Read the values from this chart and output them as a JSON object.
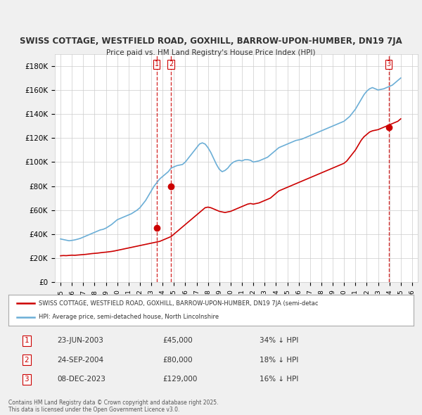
{
  "title_line1": "SWISS COTTAGE, WESTFIELD ROAD, GOXHILL, BARROW-UPON-HUMBER, DN19 7JA",
  "title_line2": "Price paid vs. HM Land Registry's House Price Index (HPI)",
  "background_color": "#f0f0f0",
  "plot_bg_color": "#ffffff",
  "hpi_color": "#6baed6",
  "price_color": "#cc0000",
  "vline_color": "#cc0000",
  "ylim": [
    0,
    190000
  ],
  "yticks": [
    0,
    20000,
    40000,
    60000,
    80000,
    100000,
    120000,
    140000,
    160000,
    180000
  ],
  "ytick_labels": [
    "£0",
    "£20K",
    "£40K",
    "£60K",
    "£80K",
    "£100K",
    "£120K",
    "£140K",
    "£160K",
    "£180K"
  ],
  "year_start": 1995,
  "year_end": 2026,
  "sale1_date": 2003.47,
  "sale1_price": 45000,
  "sale1_label": "1",
  "sale2_date": 2004.73,
  "sale2_price": 80000,
  "sale2_label": "2",
  "sale3_date": 2023.93,
  "sale3_price": 129000,
  "sale3_label": "3",
  "legend_label_red": "SWISS COTTAGE, WESTFIELD ROAD, GOXHILL, BARROW-UPON-HUMBER, DN19 7JA (semi-detac",
  "legend_label_blue": "HPI: Average price, semi-detached house, North Lincolnshire",
  "table_data": [
    [
      "1",
      "23-JUN-2003",
      "£45,000",
      "34% ↓ HPI"
    ],
    [
      "2",
      "24-SEP-2004",
      "£80,000",
      "18% ↓ HPI"
    ],
    [
      "3",
      "08-DEC-2023",
      "£129,000",
      "16% ↓ HPI"
    ]
  ],
  "footer_text": "Contains HM Land Registry data © Crown copyright and database right 2025.\nThis data is licensed under the Open Government Licence v3.0.",
  "hpi_data_years": [
    1995.0,
    1995.25,
    1995.5,
    1995.75,
    1996.0,
    1996.25,
    1996.5,
    1996.75,
    1997.0,
    1997.25,
    1997.5,
    1997.75,
    1998.0,
    1998.25,
    1998.5,
    1998.75,
    1999.0,
    1999.25,
    1999.5,
    1999.75,
    2000.0,
    2000.25,
    2000.5,
    2000.75,
    2001.0,
    2001.25,
    2001.5,
    2001.75,
    2002.0,
    2002.25,
    2002.5,
    2002.75,
    2003.0,
    2003.25,
    2003.5,
    2003.75,
    2004.0,
    2004.25,
    2004.5,
    2004.75,
    2005.0,
    2005.25,
    2005.5,
    2005.75,
    2006.0,
    2006.25,
    2006.5,
    2006.75,
    2007.0,
    2007.25,
    2007.5,
    2007.75,
    2008.0,
    2008.25,
    2008.5,
    2008.75,
    2009.0,
    2009.25,
    2009.5,
    2009.75,
    2010.0,
    2010.25,
    2010.5,
    2010.75,
    2011.0,
    2011.25,
    2011.5,
    2011.75,
    2012.0,
    2012.25,
    2012.5,
    2012.75,
    2013.0,
    2013.25,
    2013.5,
    2013.75,
    2014.0,
    2014.25,
    2014.5,
    2014.75,
    2015.0,
    2015.25,
    2015.5,
    2015.75,
    2016.0,
    2016.25,
    2016.5,
    2016.75,
    2017.0,
    2017.25,
    2017.5,
    2017.75,
    2018.0,
    2018.25,
    2018.5,
    2018.75,
    2019.0,
    2019.25,
    2019.5,
    2019.75,
    2020.0,
    2020.25,
    2020.5,
    2020.75,
    2021.0,
    2021.25,
    2021.5,
    2021.75,
    2022.0,
    2022.25,
    2022.5,
    2022.75,
    2023.0,
    2023.25,
    2023.5,
    2023.75,
    2024.0,
    2024.25,
    2024.5,
    2024.75,
    2025.0
  ],
  "hpi_data_values": [
    36000,
    35500,
    35000,
    34500,
    34800,
    35200,
    35800,
    36500,
    37500,
    38500,
    39500,
    40500,
    41500,
    42500,
    43500,
    44000,
    45000,
    46500,
    48000,
    50000,
    52000,
    53000,
    54000,
    55000,
    56000,
    57000,
    58500,
    60000,
    62000,
    65000,
    68000,
    72000,
    76000,
    80000,
    83000,
    86000,
    88000,
    90000,
    92000,
    95000,
    96000,
    97000,
    97500,
    98000,
    100000,
    103000,
    106000,
    109000,
    112000,
    115000,
    116000,
    115000,
    112000,
    108000,
    103000,
    98000,
    94000,
    92000,
    93000,
    95000,
    98000,
    100000,
    101000,
    101500,
    101000,
    102000,
    102000,
    101500,
    100000,
    100500,
    101000,
    102000,
    103000,
    104000,
    106000,
    108000,
    110000,
    112000,
    113000,
    114000,
    115000,
    116000,
    117000,
    118000,
    118500,
    119000,
    120000,
    121000,
    122000,
    123000,
    124000,
    125000,
    126000,
    127000,
    128000,
    129000,
    130000,
    131000,
    132000,
    133000,
    134000,
    136000,
    138000,
    141000,
    144000,
    148000,
    152000,
    156000,
    159000,
    161000,
    162000,
    161000,
    160000,
    160500,
    161000,
    162000,
    163000,
    164000,
    166000,
    168000,
    170000
  ],
  "price_data_years": [
    1995.0,
    1995.25,
    1995.5,
    1995.75,
    1996.0,
    1996.25,
    1996.5,
    1996.75,
    1997.0,
    1997.25,
    1997.5,
    1997.75,
    1998.0,
    1998.25,
    1998.5,
    1998.75,
    1999.0,
    1999.25,
    1999.5,
    1999.75,
    2000.0,
    2000.25,
    2000.5,
    2000.75,
    2001.0,
    2001.25,
    2001.5,
    2001.75,
    2002.0,
    2002.25,
    2002.5,
    2002.75,
    2003.0,
    2003.25,
    2003.5,
    2003.75,
    2004.0,
    2004.25,
    2004.5,
    2004.75,
    2005.0,
    2005.25,
    2005.5,
    2005.75,
    2006.0,
    2006.25,
    2006.5,
    2006.75,
    2007.0,
    2007.25,
    2007.5,
    2007.75,
    2008.0,
    2008.25,
    2008.5,
    2008.75,
    2009.0,
    2009.25,
    2009.5,
    2009.75,
    2010.0,
    2010.25,
    2010.5,
    2010.75,
    2011.0,
    2011.25,
    2011.5,
    2011.75,
    2012.0,
    2012.25,
    2012.5,
    2012.75,
    2013.0,
    2013.25,
    2013.5,
    2013.75,
    2014.0,
    2014.25,
    2014.5,
    2014.75,
    2015.0,
    2015.25,
    2015.5,
    2015.75,
    2016.0,
    2016.25,
    2016.5,
    2016.75,
    2017.0,
    2017.25,
    2017.5,
    2017.75,
    2018.0,
    2018.25,
    2018.5,
    2018.75,
    2019.0,
    2019.25,
    2019.5,
    2019.75,
    2020.0,
    2020.25,
    2020.5,
    2020.75,
    2021.0,
    2021.25,
    2021.5,
    2021.75,
    2022.0,
    2022.25,
    2022.5,
    2022.75,
    2023.0,
    2023.25,
    2023.5,
    2023.75,
    2024.0,
    2024.25,
    2024.5,
    2024.75,
    2025.0
  ],
  "price_data_values": [
    22000,
    22200,
    22100,
    22300,
    22500,
    22400,
    22600,
    22800,
    23000,
    23200,
    23500,
    23800,
    24000,
    24200,
    24500,
    24800,
    25000,
    25300,
    25600,
    26000,
    26500,
    27000,
    27500,
    28000,
    28500,
    29000,
    29500,
    30000,
    30500,
    31000,
    31500,
    32000,
    32500,
    33000,
    33500,
    34000,
    35000,
    36000,
    37000,
    38000,
    40000,
    42000,
    44000,
    46000,
    48000,
    50000,
    52000,
    54000,
    56000,
    58000,
    60000,
    62000,
    62500,
    62000,
    61000,
    60000,
    59000,
    58500,
    58000,
    58500,
    59000,
    60000,
    61000,
    62000,
    63000,
    64000,
    65000,
    65500,
    65000,
    65500,
    66000,
    67000,
    68000,
    69000,
    70000,
    72000,
    74000,
    76000,
    77000,
    78000,
    79000,
    80000,
    81000,
    82000,
    83000,
    84000,
    85000,
    86000,
    87000,
    88000,
    89000,
    90000,
    91000,
    92000,
    93000,
    94000,
    95000,
    96000,
    97000,
    98000,
    99000,
    101000,
    104000,
    107000,
    110000,
    114000,
    118000,
    121000,
    123000,
    125000,
    126000,
    126500,
    127000,
    128000,
    129000,
    130000,
    131000,
    132000,
    133000,
    134000,
    136000
  ]
}
